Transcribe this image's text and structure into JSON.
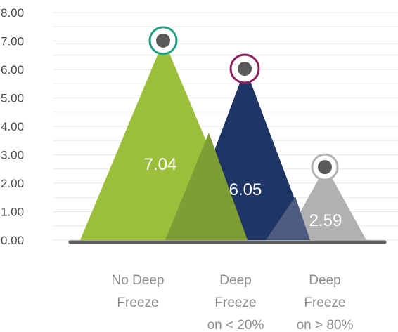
{
  "chart_data": {
    "type": "bar",
    "categories": [
      [
        "No Deep",
        "Freeze"
      ],
      [
        "Deep",
        "Freeze",
        "on < 20%"
      ],
      [
        "Deep",
        "Freeze",
        "on > 80%"
      ]
    ],
    "values": [
      7.04,
      6.05,
      2.59
    ],
    "data_labels": [
      "7.04",
      "6.05",
      "2.59"
    ],
    "yticks": [
      "0.00",
      "1.00",
      "2.00",
      "3.00",
      "4.00",
      "5.00",
      "6.00",
      "7.00",
      "8.00"
    ],
    "ylim": [
      0,
      8
    ],
    "grid": true,
    "colors": {
      "bars": [
        "#9bbf3b",
        "#1f3566",
        "#b1b1b1"
      ],
      "shadows": [
        "#7e9e35",
        "#34456e",
        "#cfcfcf"
      ],
      "rings": [
        "#23a084",
        "#8c1f5a",
        "#b3b3b3"
      ],
      "marker": "#595959",
      "baseline": "#5d5d5d",
      "grid": "#e8e8e8"
    }
  }
}
